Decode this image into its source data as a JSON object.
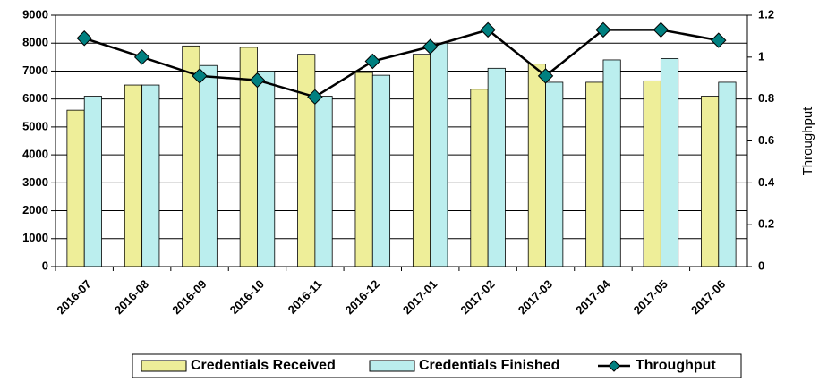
{
  "chart_data": {
    "type": "bar-line",
    "categories": [
      "2016-07",
      "2016-08",
      "2016-09",
      "2016-10",
      "2016-11",
      "2016-12",
      "2017-01",
      "2017-02",
      "2017-03",
      "2017-04",
      "2017-05",
      "2017-06"
    ],
    "series": [
      {
        "name": "Credentials Received",
        "color": "#eeee99",
        "values": [
          5600,
          6500,
          7900,
          7850,
          7600,
          6950,
          7600,
          6350,
          7250,
          6600,
          6650,
          6100
        ]
      },
      {
        "name": "Credentials Finished",
        "color": "#bbeeee",
        "values": [
          6100,
          6500,
          7200,
          7000,
          6100,
          6850,
          8000,
          7100,
          6600,
          7400,
          7450,
          6600
        ]
      },
      {
        "name": "Throughput",
        "color": "#008080",
        "axis": "y2",
        "values": [
          1.09,
          1.0,
          0.91,
          0.89,
          0.81,
          0.98,
          1.05,
          1.13,
          0.91,
          1.13,
          1.13,
          1.08
        ]
      }
    ],
    "y2label": "Throughput",
    "ylim": [
      0,
      9000
    ],
    "yticks": [
      0,
      1000,
      2000,
      3000,
      4000,
      5000,
      6000,
      7000,
      8000,
      9000
    ],
    "y2lim": [
      0,
      1.2
    ],
    "y2ticks": [
      0,
      0.2,
      0.4,
      0.6,
      0.8,
      1,
      1.2
    ],
    "grid": true,
    "legend": "bottom"
  }
}
